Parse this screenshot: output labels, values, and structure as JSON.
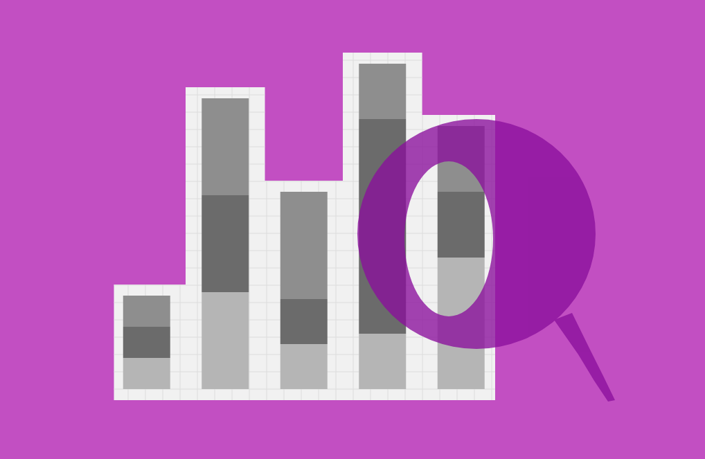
{
  "chart_data": {
    "type": "bar",
    "stacked": true,
    "categories": [
      null,
      null,
      null,
      null,
      null
    ],
    "series": [
      {
        "color": "#b5b5b5",
        "values": [
          9,
          28,
          13,
          16,
          38
        ]
      },
      {
        "color": "#6b6b6b",
        "values": [
          9,
          28,
          13,
          62,
          19
        ]
      },
      {
        "color": "#8e8e8e",
        "values": [
          9,
          28,
          31,
          16,
          19
        ]
      }
    ],
    "ylim": [
      0,
      100
    ],
    "yticks": [
      0,
      5,
      10,
      15,
      20,
      25,
      30,
      35,
      40,
      45,
      50,
      55,
      60,
      65,
      70,
      75,
      80,
      85,
      90,
      95,
      100
    ],
    "grid": true,
    "tick_labels": false
  }
}
